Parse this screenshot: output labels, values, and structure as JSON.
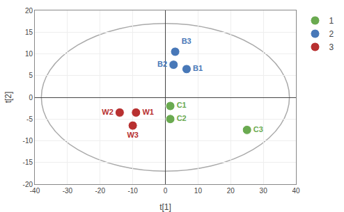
{
  "chart_data": {
    "type": "scatter",
    "xlabel": "t[1]",
    "ylabel": "t[2]",
    "xlim": [
      -40,
      40
    ],
    "ylim": [
      -20,
      20
    ],
    "xticks": [
      -40,
      -30,
      -20,
      -10,
      0,
      10,
      20,
      30,
      40
    ],
    "yticks": [
      -20,
      -15,
      -10,
      -5,
      0,
      5,
      10,
      15,
      20
    ],
    "grid": true,
    "legend": "right",
    "series": [
      {
        "name": "1",
        "color": "#6aaa50",
        "x": [
          1.5,
          1.5,
          25.0
        ],
        "y": [
          -2.0,
          -5.0,
          -7.5
        ],
        "labels": [
          "C1",
          "C2",
          "C3"
        ]
      },
      {
        "name": "2",
        "color": "#4878b8",
        "x": [
          6.5,
          2.5,
          3.0
        ],
        "y": [
          6.5,
          7.5,
          10.5
        ],
        "labels": [
          "B1",
          "B2",
          "B3"
        ]
      },
      {
        "name": "3",
        "color": "#b83030",
        "x": [
          -9.0,
          -14.0,
          -10.0
        ],
        "y": [
          -3.5,
          -3.5,
          -6.5
        ],
        "labels": [
          "W1",
          "W2",
          "W3"
        ]
      }
    ],
    "ellipse": {
      "cx": 0,
      "cy": 0,
      "rx": 38,
      "ry": 17,
      "color": "#aaaaaa"
    }
  }
}
